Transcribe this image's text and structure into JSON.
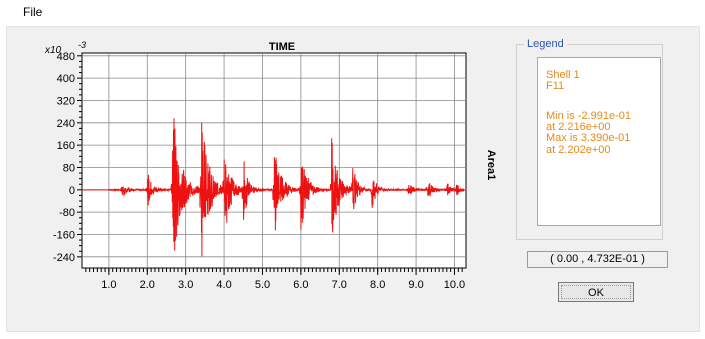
{
  "menu": {
    "file_label": "File"
  },
  "chart_data": {
    "type": "line",
    "title": "TIME",
    "ylabel": "Area1",
    "y_scale_label": "x10",
    "y_scale_exponent": "-3",
    "xlim": [
      0.3,
      10.3
    ],
    "ylim": [
      -280,
      490
    ],
    "x_ticks": [
      "1.0",
      "2.0",
      "3.0",
      "4.0",
      "5.0",
      "6.0",
      "7.0",
      "8.0",
      "9.0",
      "10.0"
    ],
    "y_ticks": [
      "480",
      "400",
      "320",
      "240",
      "160",
      "80",
      "0",
      "-80",
      "-160",
      "-240"
    ],
    "grid": true,
    "series_color": "#ee1111",
    "series": [
      {
        "values_description_free": true,
        "bursts": [
          {
            "t": 1.34,
            "amp": 45,
            "dur": 0.25
          },
          {
            "t": 2.0,
            "amp": 70,
            "dur": 0.3
          },
          {
            "t": 2.65,
            "amp": 330,
            "dur": 0.55
          },
          {
            "t": 3.4,
            "amp": 290,
            "dur": 0.5
          },
          {
            "t": 4.0,
            "amp": 210,
            "dur": 0.4
          },
          {
            "t": 4.5,
            "amp": 120,
            "dur": 0.3
          },
          {
            "t": 5.3,
            "amp": 180,
            "dur": 0.45
          },
          {
            "t": 6.0,
            "amp": 160,
            "dur": 0.4
          },
          {
            "t": 6.8,
            "amp": 200,
            "dur": 0.45
          },
          {
            "t": 7.35,
            "amp": 90,
            "dur": 0.3
          },
          {
            "t": 7.85,
            "amp": 70,
            "dur": 0.3
          },
          {
            "t": 8.8,
            "amp": 30,
            "dur": 0.25
          },
          {
            "t": 9.3,
            "amp": 40,
            "dur": 0.3
          },
          {
            "t": 9.8,
            "amp": 30,
            "dur": 0.25
          },
          {
            "t": 10.05,
            "amp": 25,
            "dur": 0.2
          }
        ]
      }
    ]
  },
  "legend": {
    "title": "Legend",
    "line1": "Shell 1",
    "line2": "F11",
    "line3": "Min is -2.991e-01",
    "line4": "at 2.216e+00",
    "line5": "Max is 3.390e-01",
    "line6": "at 2.202e+00"
  },
  "coordinate_readout": "( 0.00 , 4.732E-01 )",
  "ok_label": "OK"
}
